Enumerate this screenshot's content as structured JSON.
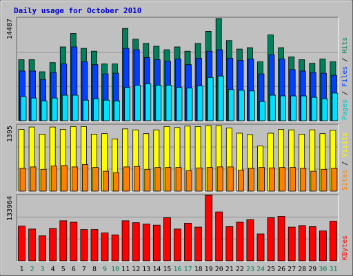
{
  "chart_data": {
    "type": "bar",
    "title": "Daily usage for October 2010",
    "colors": {
      "frame_bg": "#c0c0c0",
      "plot_bg": "#c0c0c0",
      "title": "#0000cc",
      "hits": "#00805c",
      "files": "#0040ff",
      "pages": "#00e0ff",
      "visits": "#ffff00",
      "sites": "#ff8000",
      "kbytes": "#ff0000",
      "weekend_label": "#00805c",
      "weekday_label": "#000000"
    },
    "x": {
      "categories": [
        "1",
        "2",
        "3",
        "4",
        "5",
        "6",
        "7",
        "8",
        "9",
        "10",
        "11",
        "12",
        "13",
        "14",
        "15",
        "16",
        "17",
        "18",
        "19",
        "20",
        "21",
        "22",
        "23",
        "24",
        "25",
        "26",
        "27",
        "28",
        "29",
        "30",
        "31"
      ],
      "weekend": [
        false,
        true,
        true,
        false,
        false,
        false,
        false,
        false,
        true,
        true,
        false,
        false,
        false,
        false,
        false,
        true,
        true,
        false,
        false,
        false,
        false,
        false,
        true,
        true,
        false,
        false,
        false,
        false,
        false,
        true,
        true
      ]
    },
    "panels": [
      {
        "id": "pages-files-hits",
        "ymax": 14487,
        "ymax_label": "14487",
        "legend": [
          {
            "text": "Pages",
            "color": "#00c8c8"
          },
          {
            "text": " / ",
            "color": "#000000"
          },
          {
            "text": "Files",
            "color": "#0040ff"
          },
          {
            "text": " / ",
            "color": "#000000"
          },
          {
            "text": "Hits",
            "color": "#00805c"
          }
        ],
        "series": [
          {
            "name": "Hits",
            "values": [
              8600,
              8600,
              6900,
              8200,
              10400,
              12300,
              10200,
              9800,
              8000,
              8000,
              13000,
              11500,
              10900,
              10500,
              10000,
              10400,
              9800,
              10900,
              12600,
              14400,
              11300,
              10100,
              10300,
              8300,
              12100,
              10300,
              9000,
              8600,
              8100,
              8700,
              8300
            ]
          },
          {
            "name": "Files",
            "values": [
              7000,
              7000,
              5800,
              6800,
              8000,
              10400,
              8300,
              7900,
              6600,
              6700,
              10200,
              10000,
              8900,
              8600,
              8400,
              8700,
              7900,
              8800,
              9800,
              10000,
              8800,
              8500,
              8700,
              6600,
              9300,
              8700,
              7200,
              7000,
              6800,
              6700,
              6400
            ]
          },
          {
            "name": "Pages",
            "values": [
              3400,
              3200,
              2800,
              3200,
              3600,
              3600,
              2900,
              3100,
              2900,
              2800,
              4700,
              5000,
              5200,
              5000,
              5000,
              4700,
              4600,
              4900,
              6100,
              6300,
              4400,
              4300,
              4200,
              2700,
              3600,
              3500,
              3500,
              3500,
              3300,
              3100,
              3900
            ]
          }
        ]
      },
      {
        "id": "visits-sites",
        "ymax": 1395,
        "ymax_label": "1395",
        "legend": [
          {
            "text": "Sites",
            "color": "#ff8000"
          },
          {
            "text": " / ",
            "color": "#000000"
          },
          {
            "text": "Visits",
            "color": "#ffff00"
          }
        ],
        "series": [
          {
            "name": "Visits",
            "values": [
              1300,
              1350,
              1200,
              1350,
              1300,
              1360,
              1360,
              1200,
              1210,
              1100,
              1310,
              1290,
              1210,
              1290,
              1360,
              1340,
              1370,
              1360,
              1380,
              1380,
              1330,
              1220,
              1190,
              950,
              1220,
              1300,
              1290,
              1200,
              1290,
              1210,
              1280
            ]
          },
          {
            "name": "Sites",
            "values": [
              480,
              510,
              460,
              530,
              540,
              510,
              560,
              500,
              420,
              390,
              510,
              520,
              460,
              500,
              500,
              500,
              430,
              490,
              500,
              510,
              510,
              440,
              480,
              500,
              490,
              500,
              500,
              480,
              420,
              460,
              480
            ]
          }
        ]
      },
      {
        "id": "kbytes",
        "ymax": 133964,
        "ymax_label": "133964",
        "legend": [
          {
            "text": "KBytes",
            "color": "#ff0000"
          }
        ],
        "series": [
          {
            "name": "KBytes",
            "values": [
              71000,
              65000,
              51000,
              66000,
              82000,
              79000,
              64000,
              64000,
              57000,
              53000,
              82000,
              78000,
              75000,
              73000,
              88000,
              65000,
              77000,
              69000,
              133964,
              100000,
              70000,
              79000,
              84000,
              55000,
              88000,
              91000,
              69000,
              72000,
              70000,
              61000,
              81000
            ]
          }
        ]
      }
    ]
  }
}
